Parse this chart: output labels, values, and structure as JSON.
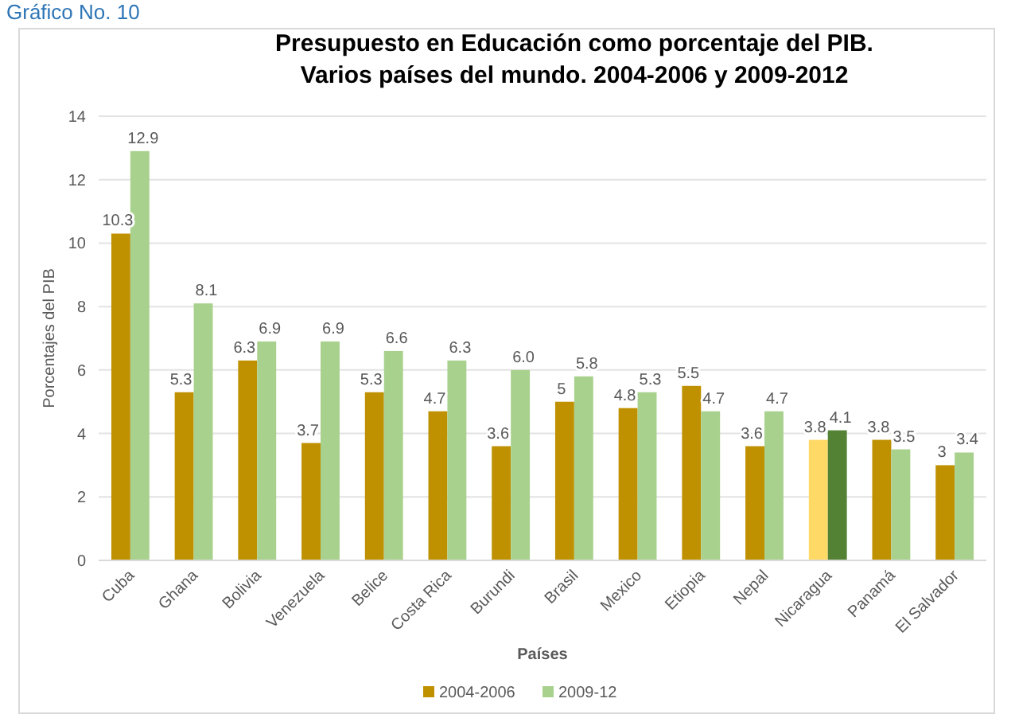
{
  "chart_data": {
    "type": "bar",
    "title": "Presupuesto en Educación como porcentaje del PIB.",
    "subtitle": "Varios países del mundo. 2004-2006 y 2009-2012",
    "xlabel": "Países",
    "ylabel": "Porcentajes del PIB",
    "annotations": [
      "Gráfico No. 10"
    ],
    "categories": [
      "Cuba",
      "Ghana",
      "Bolivia",
      "Venezuela",
      "Belice",
      "Costa Rica",
      "Burundi",
      "Brasil",
      "Mexico",
      "Etiopia",
      "Nepal",
      "Nicaragua",
      "Panamá",
      "El Salvador"
    ],
    "series": [
      {
        "name": "2004-2006",
        "color": "#bf9000",
        "colors": [
          "#bf9000",
          "#bf9000",
          "#bf9000",
          "#bf9000",
          "#bf9000",
          "#bf9000",
          "#bf9000",
          "#bf9000",
          "#bf9000",
          "#bf9000",
          "#bf9000",
          "#ffd966",
          "#bf9000",
          "#bf9000"
        ],
        "values": [
          10.3,
          5.3,
          6.3,
          3.7,
          5.3,
          4.7,
          3.6,
          5,
          4.8,
          5.5,
          3.6,
          3.8,
          3.8,
          3
        ],
        "value_labels": [
          "10.3",
          "5.3",
          "6.3",
          "3.7",
          "5.3",
          "4.7",
          "3.6",
          "5",
          "4.8",
          "5.5",
          "3.6",
          "3.8",
          "3.8",
          "3"
        ]
      },
      {
        "name": "2009-12",
        "color": "#a9d18e",
        "colors": [
          "#a9d18e",
          "#a9d18e",
          "#a9d18e",
          "#a9d18e",
          "#a9d18e",
          "#a9d18e",
          "#a9d18e",
          "#a9d18e",
          "#a9d18e",
          "#a9d18e",
          "#a9d18e",
          "#548235",
          "#a9d18e",
          "#a9d18e"
        ],
        "values": [
          12.9,
          8.1,
          6.9,
          6.9,
          6.6,
          6.3,
          6.0,
          5.8,
          5.3,
          4.7,
          4.7,
          4.1,
          3.5,
          3.4
        ],
        "value_labels": [
          "12.9",
          "8.1",
          "6.9",
          "6.9",
          "6.6",
          "6.3",
          "6.0",
          "5.8",
          "5.3",
          "4.7",
          "4.7",
          "4.1",
          "3.5",
          "3.4"
        ]
      }
    ],
    "ylim": [
      0,
      14
    ],
    "yticks": [
      0,
      2,
      4,
      6,
      8,
      10,
      12,
      14
    ],
    "grid": "y",
    "legend": "bottom"
  }
}
